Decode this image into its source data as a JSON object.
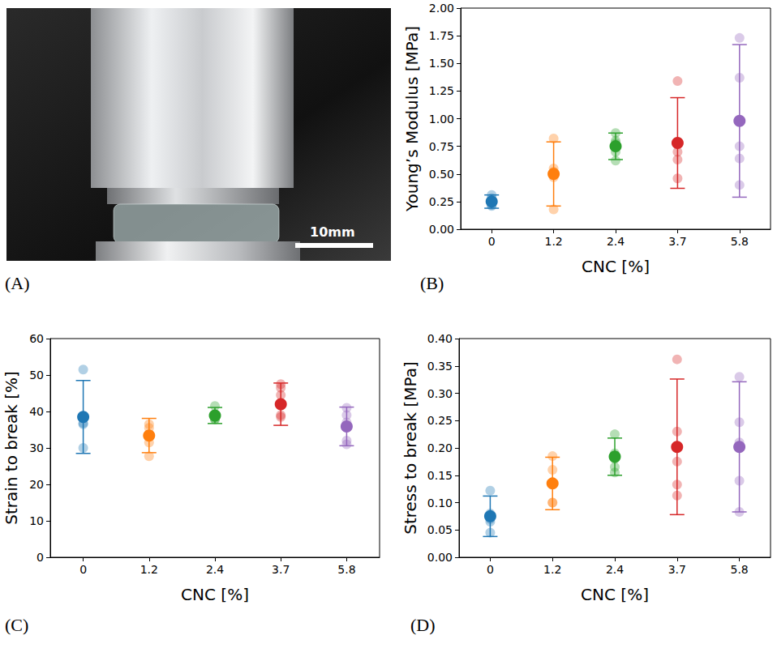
{
  "photo": {
    "panel": "(A)",
    "scale_bar": "10mm"
  },
  "chart_data": [
    {
      "panel": "(B)",
      "type": "scatter",
      "x_label": "CNC [%]",
      "y_label": "Young’s Modulus [MPa]",
      "categories": [
        "0",
        "1.2",
        "2.4",
        "3.7",
        "5.8"
      ],
      "values": [
        0.25,
        0.5,
        0.75,
        0.78,
        0.98
      ],
      "errors": [
        0.06,
        0.29,
        0.12,
        0.41,
        0.69
      ],
      "points": [
        [
          0.21,
          0.24,
          0.28,
          0.31,
          0.22
        ],
        [
          0.18,
          0.47,
          0.52,
          0.55,
          0.82
        ],
        [
          0.62,
          0.7,
          0.78,
          0.8,
          0.87
        ],
        [
          0.46,
          0.63,
          0.7,
          1.34
        ],
        [
          0.4,
          0.64,
          0.75,
          1.37,
          1.73
        ]
      ],
      "colors": [
        "#1f77b4",
        "#ff7f0e",
        "#2ca02c",
        "#d62728",
        "#9467bd"
      ],
      "ylim": [
        0,
        2
      ],
      "yticks": [
        {
          "value": 0,
          "label": "0.00"
        },
        0.25,
        {
          "value": 0.5,
          "label": "0.50"
        },
        0.75,
        {
          "value": 1,
          "label": "1.00"
        },
        1.25,
        {
          "value": 1.5,
          "label": "1.50"
        },
        1.75,
        {
          "value": 2,
          "label": "2.00"
        }
      ],
      "grid": false
    },
    {
      "panel": "(C)",
      "type": "scatter",
      "x_label": "CNC [%]",
      "y_label": "Strain to break [%]",
      "categories": [
        "0",
        "1.2",
        "2.4",
        "3.7",
        "5.8"
      ],
      "values": [
        38.5,
        33.4,
        38.9,
        42.0,
        35.9
      ],
      "errors": [
        10.0,
        4.7,
        2.2,
        5.8,
        5.3
      ],
      "points": [
        [
          30.0,
          36.5,
          36.8,
          51.5
        ],
        [
          27.7,
          31.5,
          35.5,
          36.5
        ],
        [
          37.8,
          38.0,
          38.5,
          39.0,
          41.5
        ],
        [
          38.5,
          39.0,
          44.5,
          46.5,
          47.5
        ],
        [
          31.0,
          32.0,
          37.0,
          39.0,
          41.0
        ]
      ],
      "colors": [
        "#1f77b4",
        "#ff7f0e",
        "#2ca02c",
        "#d62728",
        "#9467bd"
      ],
      "ylim": [
        0,
        60
      ],
      "yticks": [
        0,
        10,
        20,
        30,
        40,
        50,
        60
      ],
      "grid": false
    },
    {
      "panel": "(D)",
      "type": "scatter",
      "x_label": "CNC [%]",
      "y_label": "Stress to break [MPa]",
      "categories": [
        "0",
        "1.2",
        "2.4",
        "3.7",
        "5.8"
      ],
      "values": [
        0.075,
        0.135,
        0.184,
        0.202,
        0.202
      ],
      "errors": [
        0.037,
        0.048,
        0.034,
        0.124,
        0.119
      ],
      "points": [
        [
          0.045,
          0.065,
          0.07,
          0.08,
          0.122
        ],
        [
          0.1,
          0.1,
          0.16,
          0.185
        ],
        [
          0.155,
          0.165,
          0.18,
          0.19,
          0.225
        ],
        [
          0.113,
          0.133,
          0.175,
          0.23,
          0.362
        ],
        [
          0.083,
          0.14,
          0.21,
          0.247,
          0.33
        ]
      ],
      "colors": [
        "#1f77b4",
        "#ff7f0e",
        "#2ca02c",
        "#d62728",
        "#9467bd"
      ],
      "ylim": [
        0,
        0.4
      ],
      "yticks": [
        {
          "value": 0,
          "label": "0.00"
        },
        0.05,
        {
          "value": 0.1,
          "label": "0.10"
        },
        0.15,
        {
          "value": 0.2,
          "label": "0.20"
        },
        0.25,
        {
          "value": 0.3,
          "label": "0.30"
        },
        0.35,
        {
          "value": 0.4,
          "label": "0.40"
        }
      ],
      "grid": false
    }
  ]
}
